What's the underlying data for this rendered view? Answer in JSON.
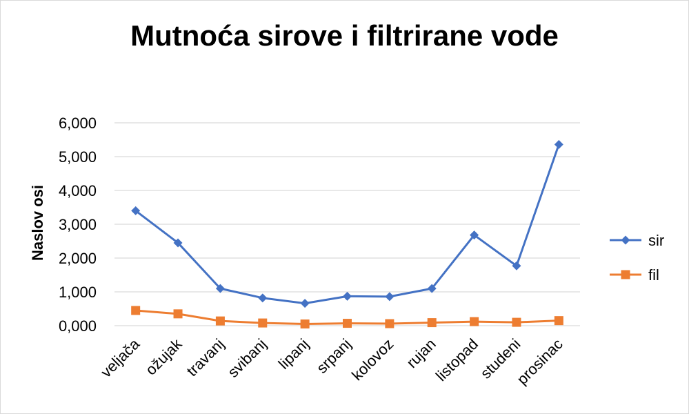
{
  "chart_data": {
    "type": "line",
    "title": "Mutnoća sirove i filtrirane vode",
    "xlabel": "",
    "ylabel": "Naslov osi",
    "categories": [
      "veljača",
      "ožujak",
      "travanj",
      "svibanj",
      "lipanj",
      "srpanj",
      "kolovoz",
      "rujan",
      "listopad",
      "studeni",
      "prosinac"
    ],
    "ylim": [
      0,
      6
    ],
    "yticks": [
      0,
      1,
      2,
      3,
      4,
      5,
      6
    ],
    "ytick_labels": [
      "0,000",
      "1,000",
      "2,000",
      "3,000",
      "4,000",
      "5,000",
      "6,000"
    ],
    "grid": true,
    "legend_position": "right",
    "series": [
      {
        "name": "sir",
        "color": "#4472c4",
        "marker": "diamond",
        "values": [
          3.4,
          2.45,
          1.1,
          0.82,
          0.66,
          0.87,
          0.86,
          1.1,
          2.68,
          1.77,
          5.36
        ]
      },
      {
        "name": "fil",
        "color": "#ed7d31",
        "marker": "square",
        "values": [
          0.45,
          0.35,
          0.14,
          0.08,
          0.05,
          0.07,
          0.06,
          0.09,
          0.12,
          0.1,
          0.15
        ]
      }
    ]
  }
}
